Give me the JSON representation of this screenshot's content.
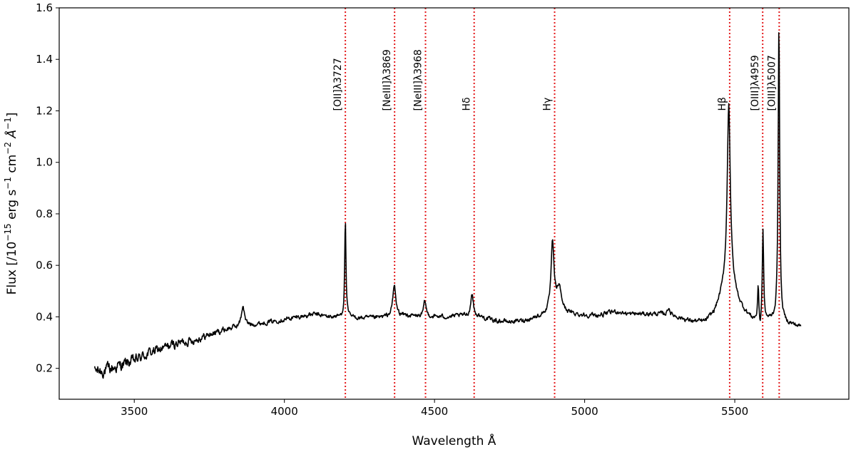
{
  "chart_data": {
    "type": "line",
    "xlabel": "Wavelength Å",
    "ylabel_prefix": "Flux  [/10",
    "ylabel_exp1": "−15",
    "ylabel_mid": " erg s",
    "ylabel_exp2": "−1",
    "ylabel_mid2": " cm",
    "ylabel_exp3": "−2",
    "ylabel_mid3": " Å",
    "ylabel_exp4": "−1",
    "ylabel_suffix": "]",
    "xlim": [
      3250,
      5880
    ],
    "ylim": [
      0.08,
      1.6
    ],
    "xticks": [
      3500,
      4000,
      4500,
      5000,
      5500
    ],
    "yticks": [
      0.2,
      0.4,
      0.6,
      0.8,
      1.0,
      1.2,
      1.4,
      1.6
    ],
    "line_color": "#000000",
    "marker_color": "#e41a1c",
    "continuum": [
      [
        3368,
        0.19
      ],
      [
        3400,
        0.19
      ],
      [
        3450,
        0.21
      ],
      [
        3500,
        0.23
      ],
      [
        3550,
        0.26
      ],
      [
        3600,
        0.28
      ],
      [
        3650,
        0.3
      ],
      [
        3700,
        0.31
      ],
      [
        3750,
        0.33
      ],
      [
        3800,
        0.35
      ],
      [
        3840,
        0.36
      ],
      [
        3900,
        0.37
      ],
      [
        3950,
        0.38
      ],
      [
        4000,
        0.39
      ],
      [
        4050,
        0.4
      ],
      [
        4100,
        0.41
      ],
      [
        4150,
        0.4
      ],
      [
        4200,
        0.4
      ],
      [
        4250,
        0.395
      ],
      [
        4300,
        0.395
      ],
      [
        4350,
        0.4
      ],
      [
        4400,
        0.405
      ],
      [
        4450,
        0.4
      ],
      [
        4500,
        0.4
      ],
      [
        4550,
        0.4
      ],
      [
        4600,
        0.405
      ],
      [
        4650,
        0.4
      ],
      [
        4700,
        0.385
      ],
      [
        4750,
        0.38
      ],
      [
        4800,
        0.385
      ],
      [
        4850,
        0.4
      ],
      [
        4900,
        0.42
      ],
      [
        4950,
        0.41
      ],
      [
        5000,
        0.405
      ],
      [
        5050,
        0.405
      ],
      [
        5100,
        0.42
      ],
      [
        5150,
        0.41
      ],
      [
        5200,
        0.41
      ],
      [
        5250,
        0.41
      ],
      [
        5300,
        0.4
      ],
      [
        5350,
        0.38
      ],
      [
        5400,
        0.37
      ],
      [
        5430,
        0.39
      ],
      [
        5450,
        0.42
      ],
      [
        5480,
        0.45
      ],
      [
        5520,
        0.41
      ],
      [
        5560,
        0.38
      ],
      [
        5600,
        0.38
      ],
      [
        5640,
        0.385
      ],
      [
        5680,
        0.37
      ],
      [
        5720,
        0.36
      ]
    ],
    "peaks": [
      {
        "x": 3862,
        "height": 0.08,
        "width": 6
      },
      {
        "x": 4203,
        "height": 0.38,
        "width": 2.5
      },
      {
        "x": 4366,
        "height": 0.12,
        "width": 6
      },
      {
        "x": 4468,
        "height": 0.06,
        "width": 5
      },
      {
        "x": 4625,
        "height": 0.09,
        "width": 5
      },
      {
        "x": 4893,
        "height": 0.26,
        "width": 6
      },
      {
        "x": 4915,
        "height": 0.09,
        "width": 10
      },
      {
        "x": 5280,
        "height": 0.03,
        "width": 5
      },
      {
        "x": 5480,
        "height": 0.68,
        "width": 6
      },
      {
        "x": 5480,
        "height": 0.1,
        "width": 28
      },
      {
        "x": 5578,
        "height": 0.13,
        "width": 2
      },
      {
        "x": 5594,
        "height": 0.35,
        "width": 2.5
      },
      {
        "x": 5647,
        "height": 1.15,
        "width": 3
      }
    ],
    "dips": [
      {
        "x": 5585,
        "depth": 0.04,
        "width": 3
      }
    ],
    "noise_start": 0.045,
    "noise_end": 0.015,
    "noise_cutoff_x": 3900,
    "vlines": [
      {
        "x": 4203,
        "label": "[OII]λ3727"
      },
      {
        "x": 4367,
        "label": "[NeIII]λ3869"
      },
      {
        "x": 4470,
        "label": "[NeIII]λ3968"
      },
      {
        "x": 4632,
        "label": "Hδ"
      },
      {
        "x": 4900,
        "label": "Hγ"
      },
      {
        "x": 5483,
        "label": "Hβ"
      },
      {
        "x": 5593,
        "label": "[OIII]λ4959"
      },
      {
        "x": 5648,
        "label": "[OIII]λ5007"
      }
    ]
  }
}
